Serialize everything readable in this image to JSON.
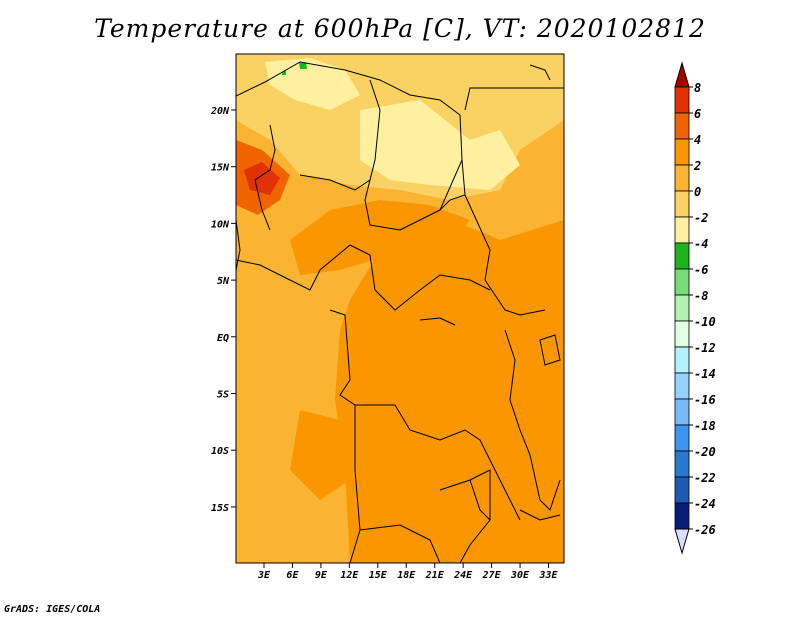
{
  "title": "Temperature at 600hPa [C], VT: 2020102812",
  "credit": "GrADS: IGES/COLA",
  "map": {
    "lat_labels": [
      "20N",
      "15N",
      "10N",
      "5N",
      "EQ",
      "5S",
      "10S",
      "15S"
    ],
    "lon_labels": [
      "3E",
      "6E",
      "9E",
      "12E",
      "15E",
      "18E",
      "21E",
      "24E",
      "27E",
      "30E",
      "33E"
    ]
  },
  "colorbar": {
    "labels": [
      "8",
      "6",
      "4",
      "2",
      "0",
      "-2",
      "-4",
      "-6",
      "-8",
      "-10",
      "-12",
      "-14",
      "-16",
      "-18",
      "-20",
      "-22",
      "-24",
      "-26"
    ],
    "colors": [
      "#a50000",
      "#e03200",
      "#f06400",
      "#fa9600",
      "#fab432",
      "#fad264",
      "#fff0a0",
      "#1eb41e",
      "#78dc78",
      "#b4f0b4",
      "#e1ffe1",
      "#b4f0ff",
      "#96d2fa",
      "#78b9fa",
      "#3c96f0",
      "#2878d2",
      "#1e5ab4",
      "#0a1e78",
      "#dcdcff"
    ]
  }
}
